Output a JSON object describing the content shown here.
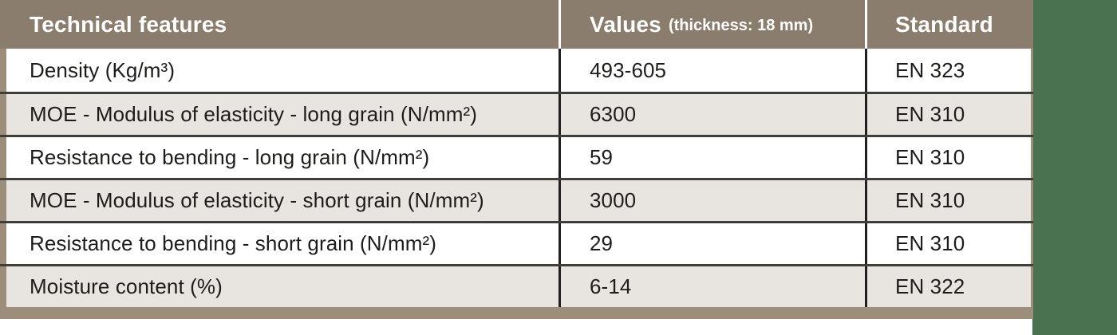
{
  "table": {
    "header": {
      "features_label": "Technical features",
      "values_label": "Values",
      "values_note": "(thickness: 18 mm)",
      "standard_label": "Standard"
    },
    "rows": [
      {
        "feature": "Density (Kg/m³)",
        "value": "493-605",
        "standard": "EN 323"
      },
      {
        "feature": "MOE - Modulus of elasticity - long grain (N/mm²)",
        "value": "6300",
        "standard": "EN 310"
      },
      {
        "feature": "Resistance to bending - long grain (N/mm²)",
        "value": "59",
        "standard": "EN 310"
      },
      {
        "feature": "MOE - Modulus of elasticity - short grain (N/mm²)",
        "value": "3000",
        "standard": "EN 310"
      },
      {
        "feature": "Resistance to bending - short grain (N/mm²)",
        "value": "29",
        "standard": "EN 310"
      },
      {
        "feature": "Moisture content (%)",
        "value": "6-14",
        "standard": "EN 322"
      }
    ],
    "colors": {
      "header_background": "#8b7d6e",
      "header_text": "#ffffff",
      "row_alt_background": "#e8e5e0",
      "row_background": "#ffffff",
      "frame_tan": "#9d8d7b",
      "row_divider": "#3f3e3b",
      "column_divider": "#21201e",
      "side_strip_green": "#4a7150",
      "body_text": "#1d1c1a"
    }
  }
}
